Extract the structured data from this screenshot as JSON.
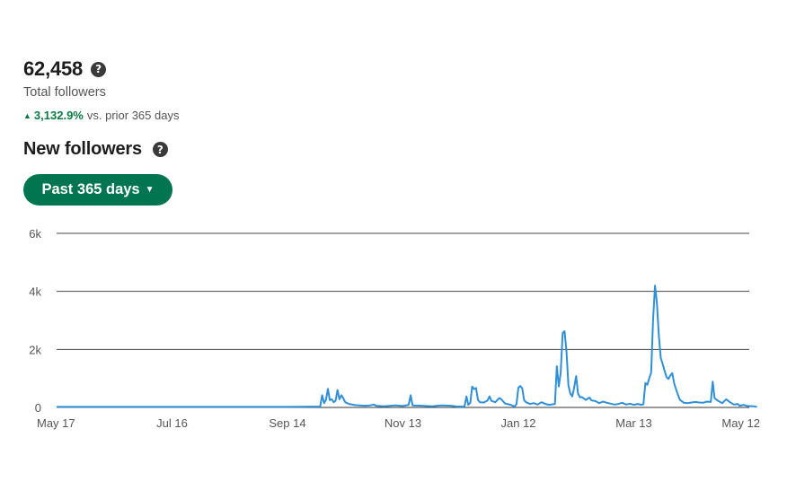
{
  "summary": {
    "total_value": "62,458",
    "total_label": "Total followers",
    "change_value": "3,132.9%",
    "change_label": "vs. prior 365 days",
    "help_icon": "question-circle-icon",
    "change_icon": "triangle-up-icon",
    "accent_color": "#0a7a3f"
  },
  "section": {
    "title": "New followers",
    "help_icon": "question-circle-icon"
  },
  "range_button": {
    "label": "Past 365 days",
    "icon": "caret-down-icon",
    "color": "#01754f"
  },
  "chart_data": {
    "type": "line",
    "title": "",
    "xlabel": "",
    "ylabel": "",
    "ylim": [
      0,
      6000
    ],
    "yticks": [
      0,
      2000,
      4000,
      6000
    ],
    "ytick_labels": [
      "0",
      "2k",
      "4k",
      "6k"
    ],
    "xticks": [
      "May 17",
      "Jul 16",
      "Sep 14",
      "Nov 13",
      "Jan 12",
      "Mar 13",
      "May 12"
    ],
    "xtick_positions": [
      0,
      60,
      120,
      180,
      240,
      300,
      360
    ],
    "grid": true,
    "line_color": "#2f8fd8",
    "series": [
      {
        "values": [
          [
            0,
            20
          ],
          [
            60,
            20
          ],
          [
            120,
            20
          ],
          [
            137,
            30
          ],
          [
            138,
            420
          ],
          [
            139,
            150
          ],
          [
            140,
            260
          ],
          [
            141,
            640
          ],
          [
            142,
            250
          ],
          [
            143,
            280
          ],
          [
            144,
            180
          ],
          [
            145,
            230
          ],
          [
            146,
            600
          ],
          [
            147,
            280
          ],
          [
            148,
            420
          ],
          [
            149,
            320
          ],
          [
            150,
            180
          ],
          [
            152,
            120
          ],
          [
            155,
            80
          ],
          [
            160,
            60
          ],
          [
            163,
            70
          ],
          [
            165,
            100
          ],
          [
            166,
            60
          ],
          [
            170,
            40
          ],
          [
            176,
            70
          ],
          [
            180,
            50
          ],
          [
            183,
            90
          ],
          [
            184,
            420
          ],
          [
            185,
            70
          ],
          [
            190,
            60
          ],
          [
            195,
            40
          ],
          [
            200,
            70
          ],
          [
            205,
            60
          ],
          [
            208,
            30
          ],
          [
            212,
            30
          ],
          [
            213,
            380
          ],
          [
            214,
            90
          ],
          [
            215,
            160
          ],
          [
            216,
            720
          ],
          [
            217,
            630
          ],
          [
            218,
            670
          ],
          [
            219,
            260
          ],
          [
            220,
            180
          ],
          [
            222,
            170
          ],
          [
            224,
            240
          ],
          [
            225,
            380
          ],
          [
            226,
            230
          ],
          [
            228,
            180
          ],
          [
            230,
            320
          ],
          [
            231,
            290
          ],
          [
            233,
            140
          ],
          [
            236,
            90
          ],
          [
            238,
            30
          ],
          [
            239,
            110
          ],
          [
            240,
            680
          ],
          [
            241,
            740
          ],
          [
            242,
            660
          ],
          [
            243,
            250
          ],
          [
            244,
            180
          ],
          [
            246,
            120
          ],
          [
            248,
            150
          ],
          [
            250,
            100
          ],
          [
            252,
            180
          ],
          [
            254,
            120
          ],
          [
            256,
            90
          ],
          [
            259,
            120
          ],
          [
            260,
            1420
          ],
          [
            261,
            720
          ],
          [
            262,
            1200
          ],
          [
            263,
            2560
          ],
          [
            264,
            2630
          ],
          [
            265,
            1950
          ],
          [
            266,
            760
          ],
          [
            267,
            480
          ],
          [
            268,
            380
          ],
          [
            269,
            680
          ],
          [
            270,
            1080
          ],
          [
            271,
            480
          ],
          [
            272,
            350
          ],
          [
            273,
            360
          ],
          [
            275,
            260
          ],
          [
            277,
            340
          ],
          [
            278,
            240
          ],
          [
            280,
            220
          ],
          [
            282,
            150
          ],
          [
            284,
            200
          ],
          [
            286,
            160
          ],
          [
            288,
            130
          ],
          [
            290,
            100
          ],
          [
            292,
            120
          ],
          [
            294,
            160
          ],
          [
            296,
            100
          ],
          [
            298,
            130
          ],
          [
            300,
            90
          ],
          [
            302,
            120
          ],
          [
            304,
            90
          ],
          [
            305,
            110
          ],
          [
            306,
            840
          ],
          [
            307,
            780
          ],
          [
            308,
            1000
          ],
          [
            309,
            1200
          ],
          [
            310,
            3000
          ],
          [
            311,
            4200
          ],
          [
            312,
            3600
          ],
          [
            313,
            2500
          ],
          [
            314,
            1700
          ],
          [
            315,
            1500
          ],
          [
            316,
            1250
          ],
          [
            317,
            1050
          ],
          [
            318,
            980
          ],
          [
            319,
            1100
          ],
          [
            320,
            1180
          ],
          [
            321,
            820
          ],
          [
            322,
            620
          ],
          [
            323,
            420
          ],
          [
            324,
            260
          ],
          [
            326,
            160
          ],
          [
            328,
            150
          ],
          [
            330,
            170
          ],
          [
            332,
            190
          ],
          [
            334,
            170
          ],
          [
            336,
            160
          ],
          [
            338,
            200
          ],
          [
            340,
            190
          ],
          [
            341,
            890
          ],
          [
            342,
            320
          ],
          [
            344,
            220
          ],
          [
            346,
            150
          ],
          [
            348,
            280
          ],
          [
            350,
            180
          ],
          [
            352,
            100
          ],
          [
            354,
            120
          ],
          [
            355,
            60
          ],
          [
            357,
            90
          ],
          [
            359,
            50
          ],
          [
            362,
            40
          ],
          [
            364,
            20
          ]
        ]
      }
    ]
  }
}
